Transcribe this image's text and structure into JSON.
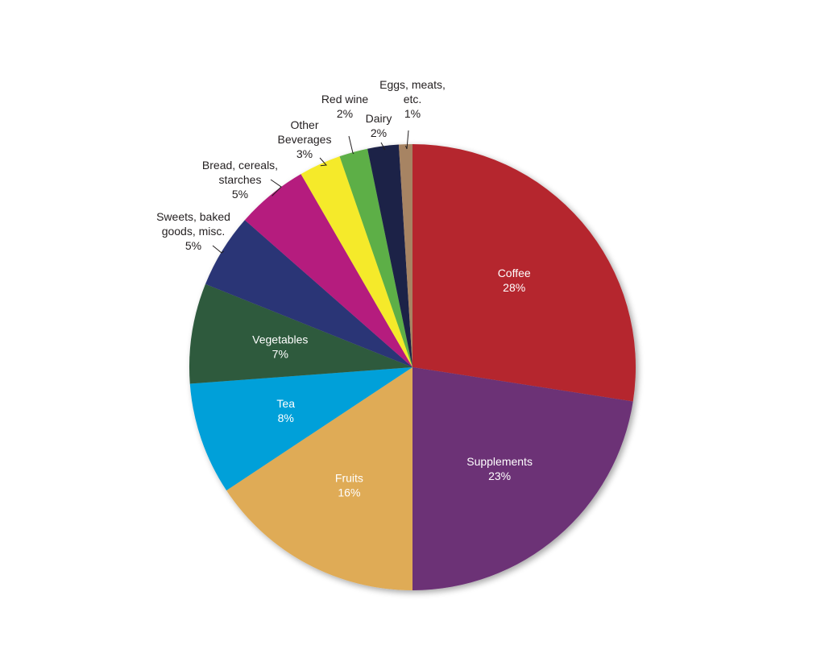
{
  "chart_data": {
    "type": "pie",
    "title": "",
    "start_angle_deg": 0,
    "direction": "clockwise",
    "slices": [
      {
        "label": [
          "Coffee"
        ],
        "percent_text": "28%",
        "value": 28,
        "color": "#b5262e",
        "label_placement": "inside",
        "label_color": "#ffffff"
      },
      {
        "label": [
          "Supplements"
        ],
        "percent_text": "23%",
        "value": 23,
        "color": "#6c3176",
        "label_placement": "inside",
        "label_color": "#ffffff"
      },
      {
        "label": [
          "Fruits"
        ],
        "percent_text": "16%",
        "value": 16,
        "color": "#dfab57",
        "label_placement": "inside",
        "label_color": "#ffffff"
      },
      {
        "label": [
          "Tea"
        ],
        "percent_text": "8%",
        "value": 8.3,
        "color": "#00a0d9",
        "label_placement": "inside",
        "label_color": "#ffffff"
      },
      {
        "label": [
          "Vegetables"
        ],
        "percent_text": "7%",
        "value": 7.4,
        "color": "#2e5a3e",
        "label_placement": "inside",
        "label_color": "#ffffff"
      },
      {
        "label": [
          "Sweets, baked",
          "goods, misc."
        ],
        "percent_text": "5%",
        "value": 5.5,
        "color": "#2b3476",
        "label_placement": "outside",
        "label_color": "#231f20"
      },
      {
        "label": [
          "Bread, cereals,",
          "starches"
        ],
        "percent_text": "5%",
        "value": 5.3,
        "color": "#b51b7e",
        "label_placement": "outside",
        "label_color": "#231f20"
      },
      {
        "label": [
          "Other",
          "Beverages"
        ],
        "percent_text": "3%",
        "value": 3.1,
        "color": "#f5ea2a",
        "label_placement": "outside",
        "label_color": "#231f20"
      },
      {
        "label": [
          "Red wine"
        ],
        "percent_text": "2%",
        "value": 2.1,
        "color": "#5daf47",
        "label_placement": "outside",
        "label_color": "#231f20"
      },
      {
        "label": [
          "Dairy"
        ],
        "percent_text": "2%",
        "value": 2.3,
        "color": "#1f2146",
        "label_placement": "outside",
        "label_color": "#231f20"
      },
      {
        "label": [
          "Eggs, meats,",
          "etc."
        ],
        "percent_text": "1%",
        "value": 1.0,
        "color": "#a78464",
        "label_placement": "outside",
        "label_color": "#231f20"
      }
    ]
  }
}
